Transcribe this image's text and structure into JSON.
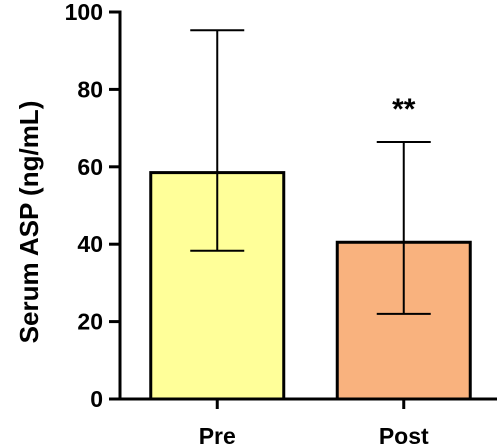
{
  "chart_data": {
    "type": "bar",
    "categories": [
      "Pre",
      "Post"
    ],
    "values": [
      58.5,
      40.5
    ],
    "error_bars": [
      {
        "lower": 38.3,
        "upper": 95.3
      },
      {
        "lower": 22.0,
        "upper": 66.4
      }
    ],
    "bar_colors": [
      "#FFFF99",
      "#F9B27E"
    ],
    "title": "",
    "xlabel": "",
    "ylabel": "Serum  ASP (ng/mL)",
    "ylim": [
      0,
      100
    ],
    "yticks": [
      "0",
      "20",
      "40",
      "60",
      "80",
      "100"
    ],
    "annotations": [
      {
        "category": "Post",
        "text": "**"
      }
    ],
    "grid": false,
    "legend": "none"
  }
}
